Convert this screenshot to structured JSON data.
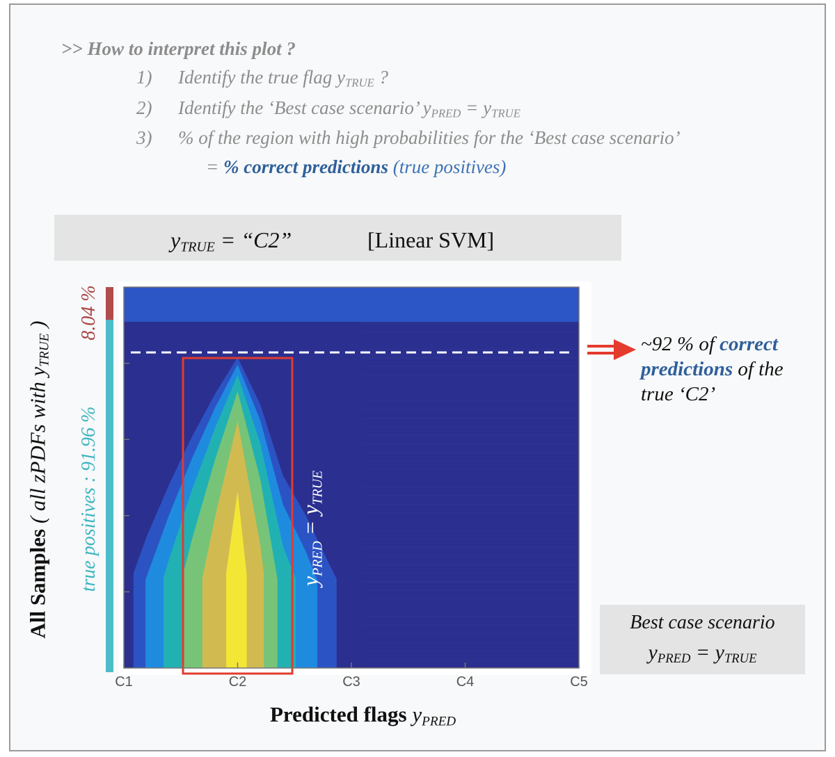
{
  "interpretation": {
    "heading": ">> How to interpret this plot ?",
    "step1": {
      "num": "1)",
      "text": "Identify the true flag ",
      "var": "y",
      "sub": "TRUE",
      "after": " ?"
    },
    "step2": {
      "num": "2)",
      "text": "Identify the ‘Best case scenario’ ",
      "var_a": "y",
      "sub_a": "PRED",
      "eq": " = ",
      "var_b": "y",
      "sub_b": "TRUE"
    },
    "step3": {
      "num": "3)",
      "text": "% of the region with high probabilities for the ‘Best case scenario’"
    },
    "step3b": {
      "eq": "= ",
      "emph": "% correct predictions",
      "paren": " (true positives)"
    }
  },
  "title_box": {
    "var": "y",
    "sub": "TRUE",
    "eq": " = “C2”",
    "model": "[Linear SVM]"
  },
  "y_axis": {
    "label": "All Samples",
    "paren_text": " ( all zPDFs with ",
    "var": "y",
    "sub": "TRUE",
    "close": " )"
  },
  "side_bars": {
    "red_label": "8.04 %",
    "cyan_label": "true positives  : 91.96 %",
    "red_color": "#b24b4b",
    "cyan_color": "#4dbcc9"
  },
  "diag_label": {
    "var_a": "y",
    "sub_a": "PRED",
    "eq": " = ",
    "var_b": "y",
    "sub_b": "TRUE"
  },
  "annotation": {
    "line1_a": "~92 % of ",
    "line1_b": "correct",
    "line2_a": "predictions",
    "line2_b": " of the",
    "line3": "true ‘C2’"
  },
  "legend": {
    "title": "Best case scenario",
    "var_a": "y",
    "sub_a": "PRED",
    "eq": " = ",
    "var_b": "y",
    "sub_b": "TRUE"
  },
  "x_axis": {
    "label": "Predicted flags ",
    "var": "y",
    "sub": "PRED"
  },
  "chart_data": {
    "type": "heatmap",
    "x_categories": [
      "C1",
      "C2",
      "C3",
      "C4",
      "C5"
    ],
    "xlim": [
      "C1",
      "C5"
    ],
    "true_flag": "C2",
    "true_positive_fraction": 0.9196,
    "misclassified_fraction": 0.0804,
    "highlight_category": "C2",
    "colormap": [
      "#2b2f8f",
      "#2c55c6",
      "#1e8ee0",
      "#22b3b0",
      "#7cc575",
      "#d6bb4e",
      "#f6e833"
    ],
    "profile": [
      {
        "x": 1.0,
        "peak": 0.08,
        "width": 0.95
      },
      {
        "x": 1.2,
        "peak": 0.32,
        "width": 0.95
      },
      {
        "x": 1.4,
        "peak": 0.52,
        "width": 0.9
      },
      {
        "x": 1.6,
        "peak": 0.7,
        "width": 0.85
      },
      {
        "x": 1.8,
        "peak": 0.86,
        "width": 0.9
      },
      {
        "x": 2.0,
        "peak": 1.0,
        "width": 1.0
      },
      {
        "x": 2.2,
        "peak": 0.82,
        "width": 0.95
      },
      {
        "x": 2.4,
        "peak": 0.55,
        "width": 0.9
      },
      {
        "x": 2.6,
        "peak": 0.4,
        "width": 0.9
      },
      {
        "x": 2.8,
        "peak": 0.22,
        "width": 1.0
      },
      {
        "x": 3.0,
        "peak": 0.05,
        "width": 0.3
      },
      {
        "x": 5.0,
        "peak": 0.0,
        "width": 0.0
      }
    ]
  }
}
